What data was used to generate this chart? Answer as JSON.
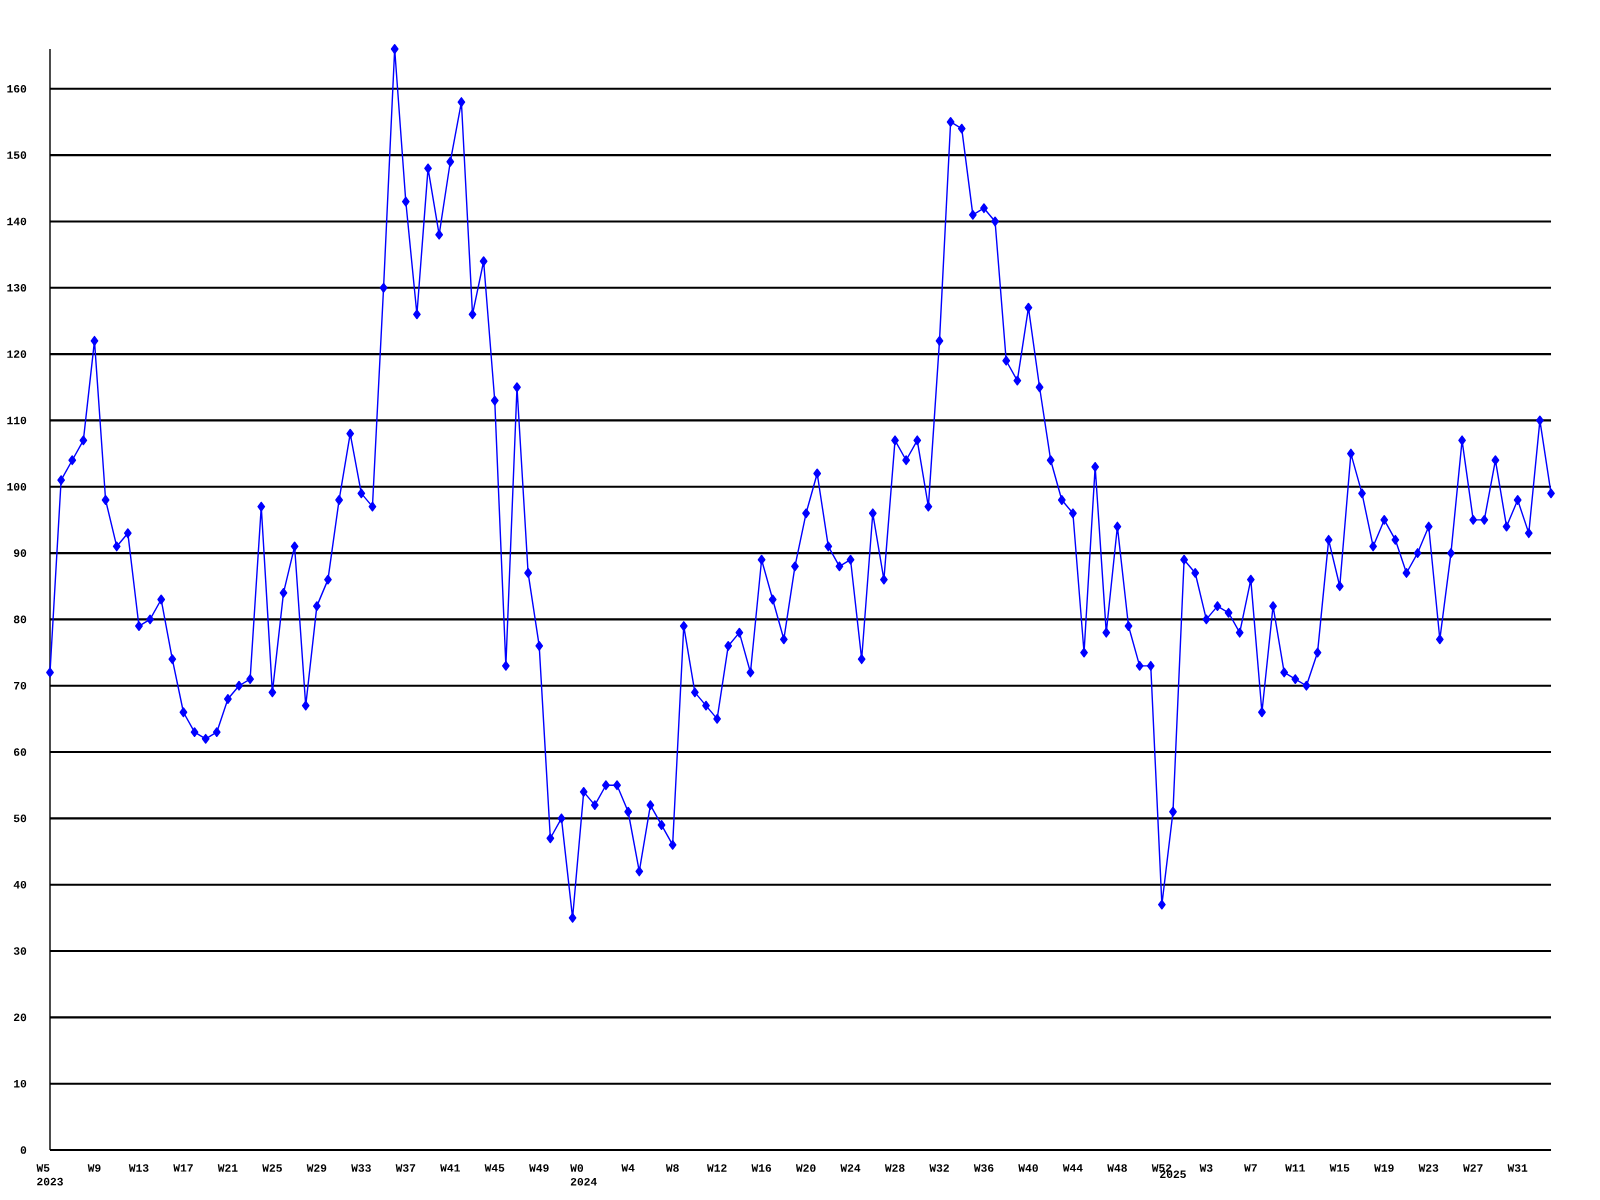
{
  "chart_data": {
    "type": "line",
    "categories": [
      "W5\n2023",
      null,
      null,
      null,
      "W9",
      null,
      null,
      null,
      "W13",
      null,
      null,
      null,
      "W17",
      null,
      null,
      null,
      "W21",
      null,
      null,
      null,
      "W25",
      null,
      null,
      null,
      "W29",
      null,
      null,
      null,
      "W33",
      null,
      null,
      null,
      "W37",
      null,
      null,
      null,
      "W41",
      null,
      null,
      null,
      "W45",
      null,
      null,
      null,
      "W49",
      null,
      null,
      null,
      "W0\n2024",
      null,
      null,
      null,
      "W4",
      null,
      null,
      null,
      "W8",
      null,
      null,
      null,
      "W12",
      null,
      null,
      null,
      "W16",
      null,
      null,
      null,
      "W20",
      null,
      null,
      null,
      "W24",
      null,
      null,
      null,
      "W28",
      null,
      null,
      null,
      "W32",
      null,
      null,
      null,
      "W36",
      null,
      null,
      null,
      "W40",
      null,
      null,
      null,
      "W44",
      null,
      null,
      null,
      "W48",
      null,
      null,
      null,
      "W52",
      "\n2025",
      null,
      null,
      "W3",
      null,
      null,
      null,
      "W7",
      null,
      null,
      null,
      "W11",
      null,
      null,
      null,
      "W15",
      null,
      null,
      null,
      "W19",
      null,
      null,
      null,
      "W23",
      null,
      null,
      null,
      "W27",
      null,
      null,
      null,
      "W31",
      null,
      null,
      null
    ],
    "series": [
      {
        "color": "#0000ff",
        "values": [
          72,
          101,
          104,
          107,
          122,
          98,
          91,
          93,
          79,
          80,
          83,
          74,
          66,
          63,
          62,
          63,
          68,
          70,
          71,
          97,
          69,
          84,
          91,
          67,
          82,
          86,
          98,
          108,
          99,
          97,
          130,
          166,
          143,
          126,
          148,
          138,
          149,
          158,
          126,
          134,
          113,
          73,
          115,
          87,
          76,
          47,
          50,
          35,
          54,
          52,
          55,
          55,
          51,
          42,
          52,
          49,
          46,
          79,
          69,
          67,
          65,
          76,
          78,
          72,
          89,
          83,
          77,
          88,
          96,
          102,
          91,
          88,
          89,
          74,
          96,
          86,
          107,
          104,
          107,
          97,
          122,
          155,
          154,
          141,
          142,
          140,
          119,
          116,
          127,
          115,
          104,
          98,
          96,
          75,
          103,
          78,
          94,
          79,
          73,
          73,
          37,
          51,
          89,
          87,
          80,
          82,
          81,
          78,
          86,
          66,
          82,
          72,
          71,
          70,
          75,
          92,
          85,
          105,
          99,
          91,
          95,
          92,
          87,
          90,
          94,
          77,
          90,
          107,
          95,
          95,
          104,
          94,
          98,
          93,
          110,
          99
        ]
      }
    ],
    "ylim": [
      0,
      166
    ],
    "yticks": [
      0,
      10,
      20,
      30,
      40,
      50,
      60,
      70,
      80,
      90,
      100,
      110,
      120,
      130,
      140,
      150,
      160
    ],
    "grid": "y",
    "marker": "diamond",
    "line_style": "solid"
  }
}
